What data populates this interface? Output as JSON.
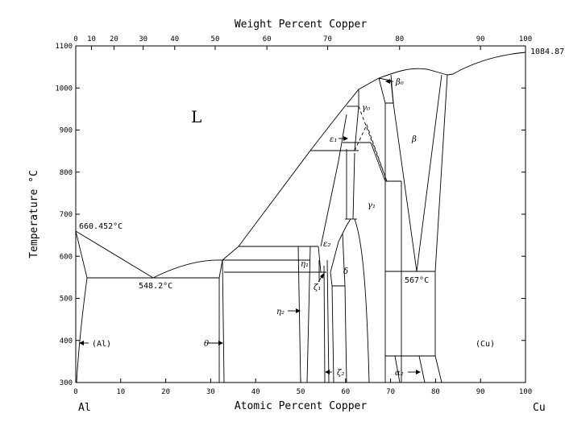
{
  "chart_data": {
    "type": "phase-diagram",
    "title": "",
    "top_axis": {
      "label": "Weight Percent Copper",
      "ticks": [
        "0",
        "10",
        "20",
        "30",
        "40",
        "50",
        "60",
        "70",
        "80",
        "90",
        "100"
      ]
    },
    "bottom_axis": {
      "label": "Atomic Percent Copper",
      "ticks": [
        "0",
        "10",
        "20",
        "30",
        "40",
        "50",
        "60",
        "70",
        "80",
        "90",
        "100"
      ],
      "xlim": [
        0,
        100
      ]
    },
    "left_axis": {
      "label": "Temperature °C",
      "ticks": [
        "300",
        "400",
        "500",
        "600",
        "700",
        "800",
        "900",
        "1000",
        "1100"
      ],
      "ylim": [
        300,
        1100
      ]
    },
    "elements": {
      "left": "Al",
      "right": "Cu"
    },
    "annotations": {
      "al_melting": "660.452°C",
      "cu_melting": "1084.87",
      "eutectic_al": "548.2°C",
      "eutectoid": "567°C"
    },
    "phase_labels": {
      "liquid": "L",
      "al": "(Al)",
      "cu": "(Cu)",
      "theta": "θ",
      "eta1": "η₁",
      "eta2": "η₂",
      "zeta1": "ζ₁",
      "zeta2": "ζ₂",
      "delta": "δ",
      "eps1": "ε₁",
      "eps2": "ε₂",
      "gamma0": "γ₀",
      "gamma1": "γ₁",
      "beta": "β",
      "beta0": "β₀",
      "alpha2": "α₂"
    }
  }
}
